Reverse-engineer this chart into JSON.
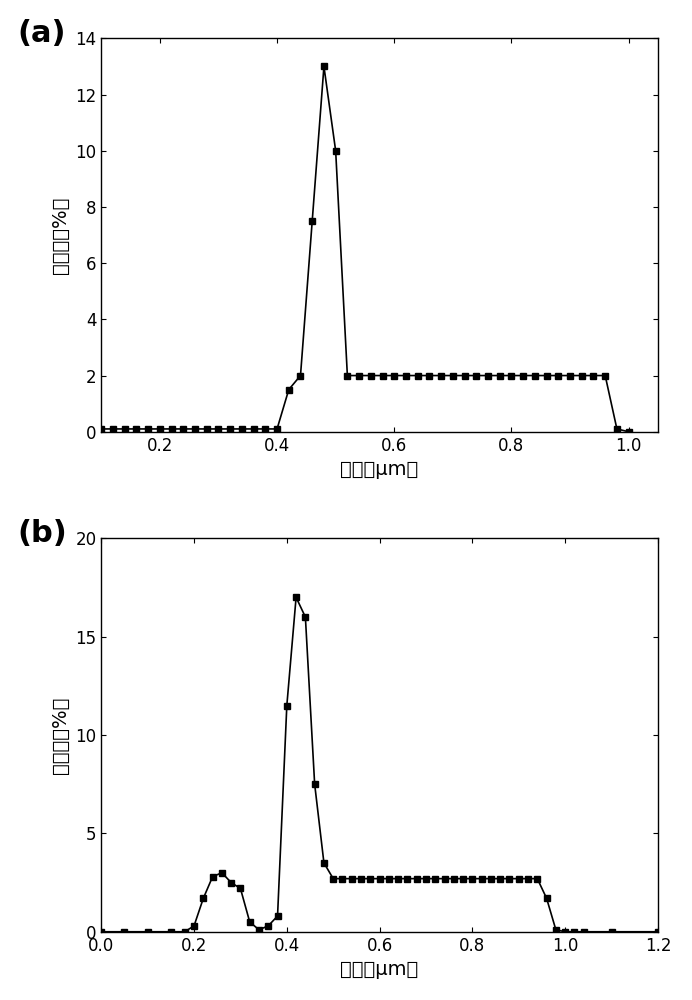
{
  "panel_a": {
    "x": [
      0.1,
      0.12,
      0.14,
      0.16,
      0.18,
      0.2,
      0.22,
      0.24,
      0.26,
      0.28,
      0.3,
      0.32,
      0.34,
      0.36,
      0.38,
      0.4,
      0.42,
      0.44,
      0.46,
      0.48,
      0.5,
      0.52,
      0.54,
      0.56,
      0.58,
      0.6,
      0.62,
      0.64,
      0.66,
      0.68,
      0.7,
      0.72,
      0.74,
      0.76,
      0.78,
      0.8,
      0.82,
      0.84,
      0.86,
      0.88,
      0.9,
      0.92,
      0.94,
      0.96,
      0.98,
      1.0
    ],
    "y": [
      0.1,
      0.1,
      0.1,
      0.1,
      0.1,
      0.1,
      0.1,
      0.1,
      0.1,
      0.1,
      0.1,
      0.1,
      0.1,
      0.1,
      0.1,
      0.1,
      1.5,
      2.0,
      7.5,
      13.0,
      10.0,
      2.0,
      2.0,
      2.0,
      2.0,
      2.0,
      2.0,
      2.0,
      2.0,
      2.0,
      2.0,
      2.0,
      2.0,
      2.0,
      2.0,
      2.0,
      2.0,
      2.0,
      2.0,
      2.0,
      2.0,
      2.0,
      2.0,
      2.0,
      0.1,
      0.0
    ],
    "xlim": [
      0.1,
      1.05
    ],
    "ylim": [
      0,
      14
    ],
    "yticks": [
      0,
      2,
      4,
      6,
      8,
      10,
      12,
      14
    ],
    "xticks": [
      0.2,
      0.4,
      0.6,
      0.8,
      1.0
    ],
    "xlabel": "孔径（μm）",
    "ylabel": "百分比（%）",
    "label": "(a)"
  },
  "panel_b": {
    "x": [
      0.0,
      0.05,
      0.1,
      0.15,
      0.18,
      0.2,
      0.22,
      0.24,
      0.26,
      0.28,
      0.3,
      0.32,
      0.34,
      0.36,
      0.38,
      0.4,
      0.42,
      0.44,
      0.46,
      0.48,
      0.5,
      0.52,
      0.54,
      0.56,
      0.58,
      0.6,
      0.62,
      0.64,
      0.66,
      0.68,
      0.7,
      0.72,
      0.74,
      0.76,
      0.78,
      0.8,
      0.82,
      0.84,
      0.86,
      0.88,
      0.9,
      0.92,
      0.94,
      0.96,
      0.98,
      1.0,
      1.02,
      1.04,
      1.1,
      1.2
    ],
    "y": [
      0.0,
      0.0,
      0.0,
      0.0,
      0.0,
      0.3,
      1.7,
      2.8,
      3.0,
      2.5,
      2.2,
      0.5,
      0.1,
      0.3,
      0.8,
      11.5,
      17.0,
      16.0,
      7.5,
      3.5,
      2.7,
      2.7,
      2.7,
      2.7,
      2.7,
      2.7,
      2.7,
      2.7,
      2.7,
      2.7,
      2.7,
      2.7,
      2.7,
      2.7,
      2.7,
      2.7,
      2.7,
      2.7,
      2.7,
      2.7,
      2.7,
      2.7,
      2.7,
      1.7,
      0.1,
      0.0,
      0.0,
      0.0,
      0.0,
      0.0
    ],
    "xlim": [
      0.0,
      1.2
    ],
    "ylim": [
      0,
      20
    ],
    "yticks": [
      0,
      5,
      10,
      15,
      20
    ],
    "xticks": [
      0.0,
      0.2,
      0.4,
      0.6,
      0.8,
      1.0,
      1.2
    ],
    "xlabel": "孔径（μm）",
    "ylabel": "百分比（%）",
    "label": "(b)"
  },
  "line_color": "#000000",
  "marker": "s",
  "markersize": 4,
  "linewidth": 1.2,
  "background_color": "#ffffff",
  "label_fontsize": 22,
  "axis_fontsize": 14,
  "tick_fontsize": 12
}
